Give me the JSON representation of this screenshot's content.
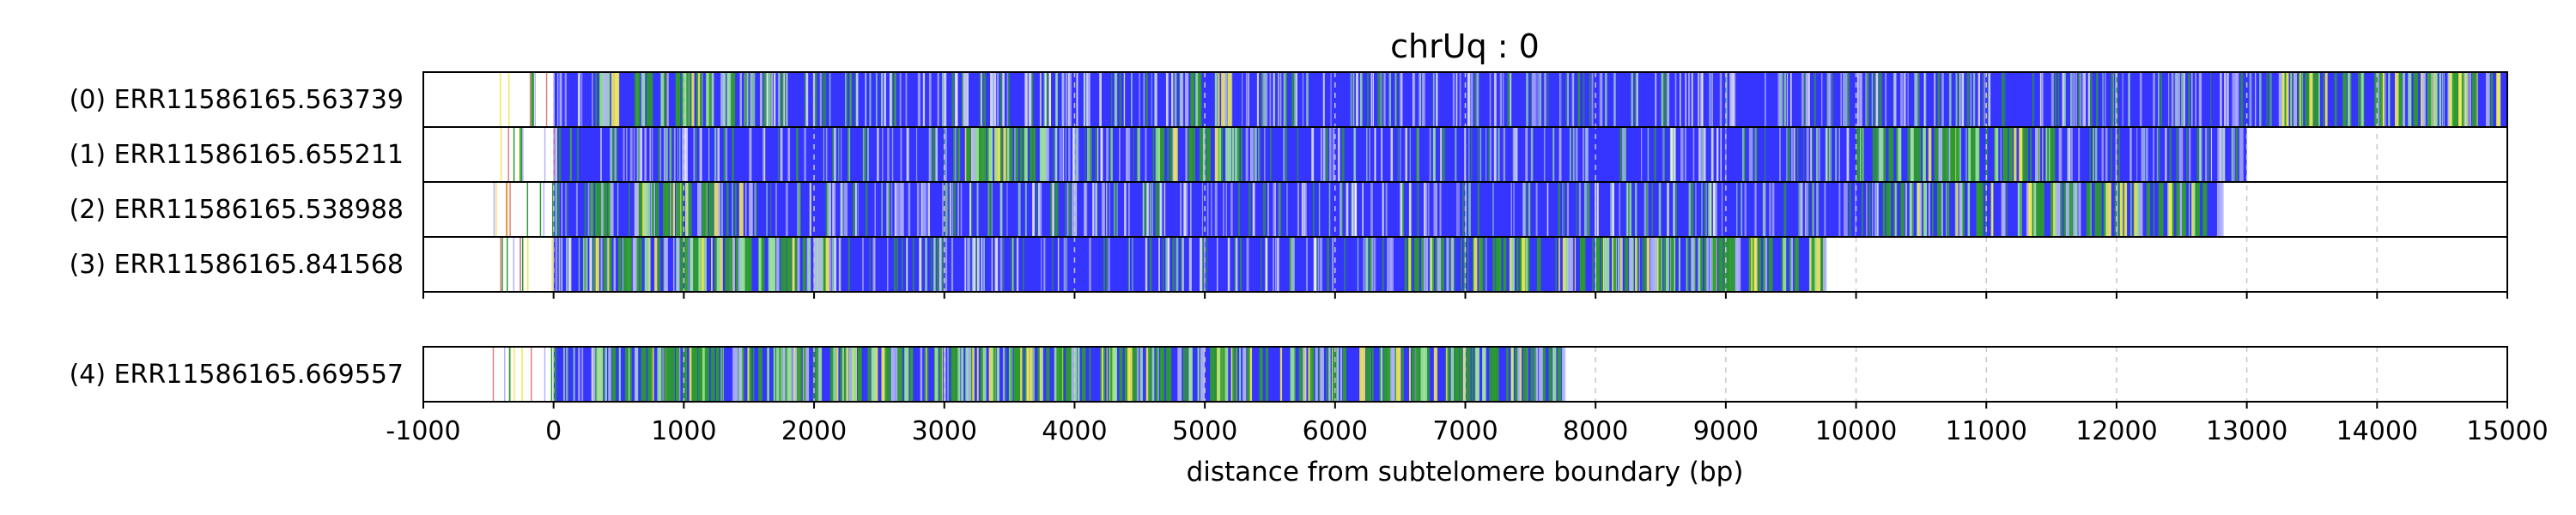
{
  "chart_data": {
    "type": "heatmap",
    "title": "chrUq : 0",
    "xlabel": "distance from subtelomere boundary (bp)",
    "xlim": [
      -1000,
      15000
    ],
    "x_ticks": [
      -1000,
      0,
      1000,
      2000,
      3000,
      4000,
      5000,
      6000,
      7000,
      8000,
      9000,
      10000,
      11000,
      12000,
      13000,
      14000,
      15000
    ],
    "grid": "vertical dashed",
    "colors": {
      "base": "#3535ff",
      "green": "#2e9b2e",
      "light_green": "#9be29b",
      "yellow": "#f0e85a",
      "lavender": "#b3b3ff",
      "white": "#ffffff"
    },
    "reads": [
      {
        "label": "(0) ERR11586165.563739",
        "start": -500,
        "end": 15000,
        "green_regions": [
          [
            300,
            1500
          ],
          [
            4800,
            5200
          ],
          [
            13200,
            15000
          ]
        ]
      },
      {
        "label": "(1) ERR11586165.655211",
        "start": -500,
        "end": 13000,
        "green_regions": [
          [
            3100,
            3800
          ],
          [
            4600,
            5300
          ],
          [
            10000,
            11500
          ]
        ]
      },
      {
        "label": "(2) ERR11586165.538988",
        "start": -500,
        "end": 12800,
        "green_regions": [
          [
            300,
            1500
          ],
          [
            10200,
            12800
          ]
        ]
      },
      {
        "label": "(3) ERR11586165.841568",
        "start": -500,
        "end": 9750,
        "green_regions": [
          [
            300,
            2100
          ],
          [
            6500,
            9750
          ]
        ]
      },
      {
        "label": "(4) ERR11586165.669557",
        "start": -500,
        "end": 7750,
        "green_regions": [
          [
            300,
            7750
          ]
        ]
      }
    ]
  }
}
